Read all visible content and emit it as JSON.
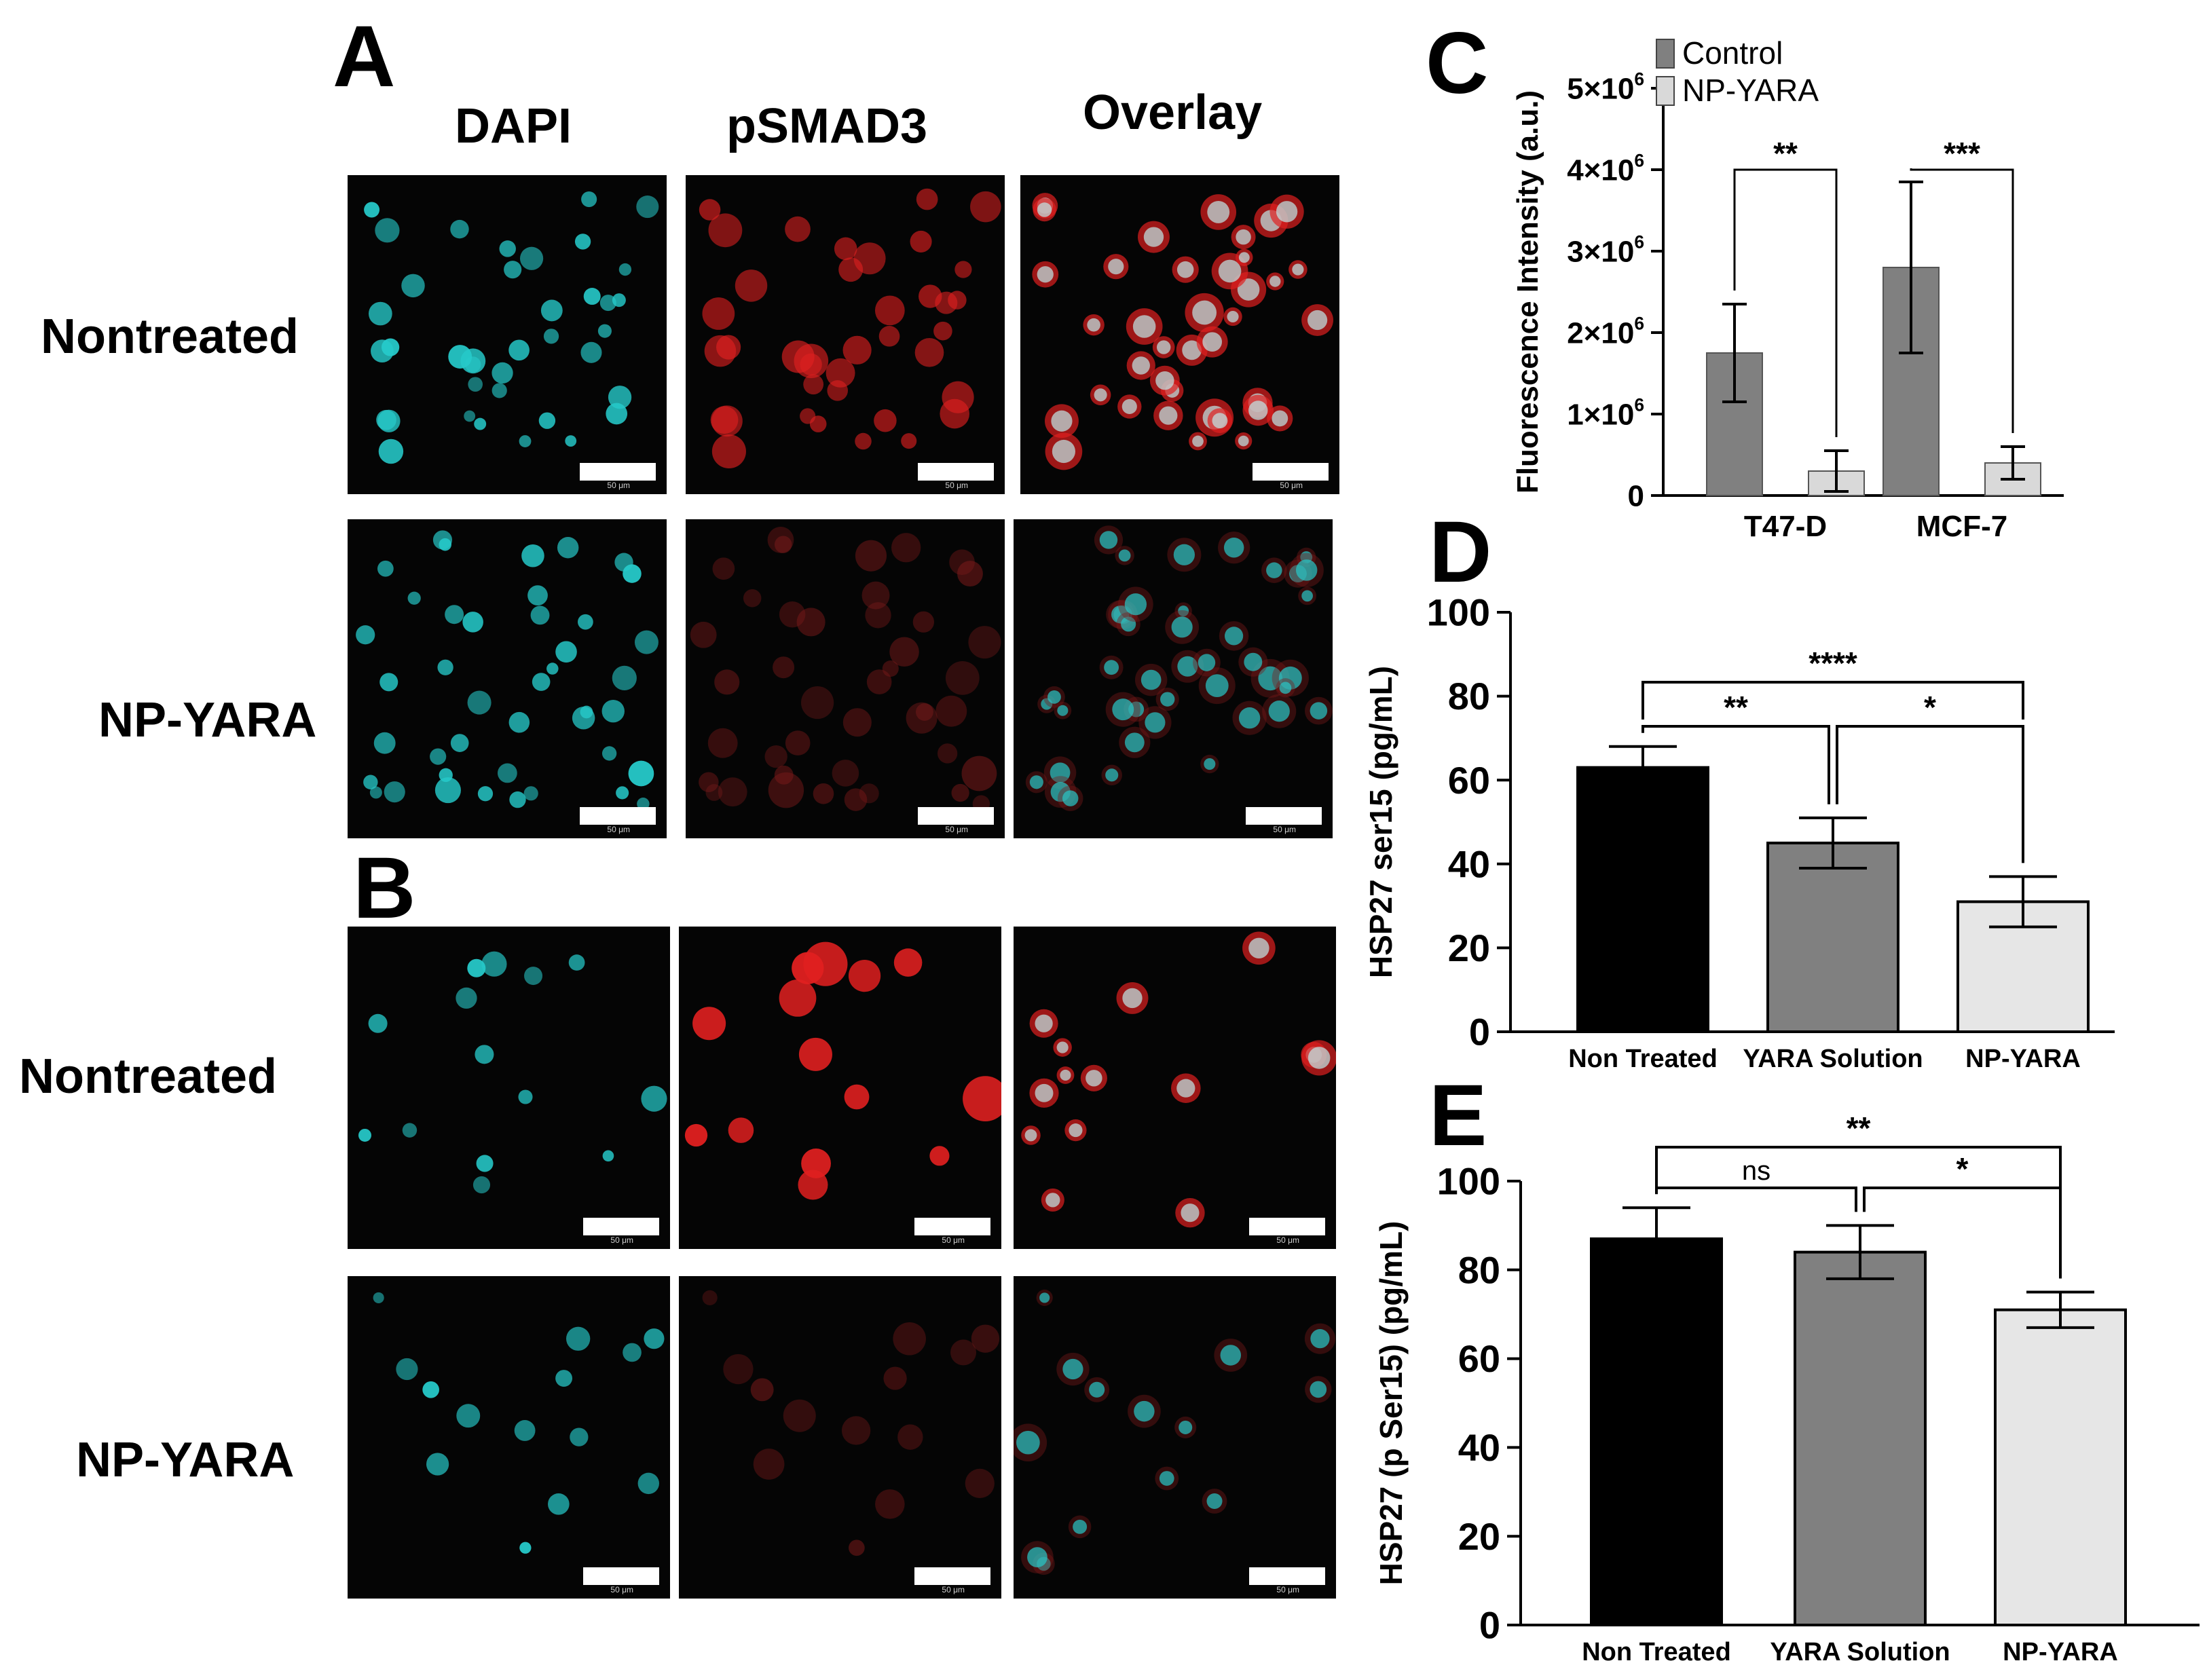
{
  "panels": {
    "A": "A",
    "B": "B",
    "C": "C",
    "D": "D",
    "E": "E"
  },
  "columns": [
    "DAPI",
    "pSMAD3",
    "Overlay"
  ],
  "row_labels": {
    "a_top": "Nontreated",
    "a_bottom": "NP-YARA",
    "b_top": "Nontreated",
    "b_bottom": "NP-YARA"
  },
  "scale_bar_label": "50 μm",
  "colors": {
    "dapi": "#26c9c9",
    "pSMAD3": "#e02020",
    "control_bar": "#808080",
    "npyara_bar": "#d9d9d9",
    "nontreated_bar": "#000000",
    "yara_solution_bar": "#808080",
    "np_yara_bar": "#e6e6e6"
  },
  "chart_data": [
    {
      "id": "C",
      "type": "bar",
      "categories": [
        "T47-D",
        "MCF-7"
      ],
      "series": [
        {
          "name": "Control",
          "values": [
            1750000,
            2800000
          ],
          "errors": [
            600000,
            1050000
          ]
        },
        {
          "name": "NP-YARA",
          "values": [
            300000,
            400000
          ],
          "errors": [
            250000,
            200000
          ]
        }
      ],
      "ylabel": "Fluorescence Intensity (a.u.)",
      "ylim": [
        0,
        5000000
      ],
      "yticks": [
        {
          "v": 0,
          "label": "0"
        },
        {
          "v": 1000000,
          "label": "1×10",
          "sup": "6"
        },
        {
          "v": 2000000,
          "label": "2×10",
          "sup": "6"
        },
        {
          "v": 3000000,
          "label": "3×10",
          "sup": "6"
        },
        {
          "v": 4000000,
          "label": "4×10",
          "sup": "6"
        },
        {
          "v": 5000000,
          "label": "5×10",
          "sup": "6"
        }
      ],
      "legend": "top-left",
      "significance": [
        {
          "category": "T47-D",
          "label": "**"
        },
        {
          "category": "MCF-7",
          "label": "***"
        }
      ]
    },
    {
      "id": "D",
      "type": "bar",
      "categories": [
        "Non Treated",
        "YARA Solution",
        "NP-YARA"
      ],
      "values": [
        63,
        45,
        31
      ],
      "errors": [
        5,
        6,
        6
      ],
      "ylabel": "HSP27 ser15 (pg/mL)",
      "ylim": [
        0,
        100
      ],
      "yticks": [
        0,
        20,
        40,
        60,
        80,
        100
      ],
      "significance": [
        {
          "from": 0,
          "to": 2,
          "label": "****"
        },
        {
          "from": 0,
          "to": 1,
          "label": "**"
        },
        {
          "from": 1,
          "to": 2,
          "label": "*"
        }
      ]
    },
    {
      "id": "E",
      "type": "bar",
      "categories": [
        "Non Treated",
        "YARA Solution",
        "NP-YARA"
      ],
      "values": [
        87,
        84,
        71
      ],
      "errors": [
        7,
        6,
        4
      ],
      "ylabel": "HSP27 (p Ser15) (pg/mL)",
      "ylim": [
        0,
        100
      ],
      "yticks": [
        0,
        20,
        40,
        60,
        80,
        100
      ],
      "significance": [
        {
          "from": 0,
          "to": 2,
          "label": "**"
        },
        {
          "from": 0,
          "to": 1,
          "label": "ns"
        },
        {
          "from": 1,
          "to": 2,
          "label": "*"
        }
      ]
    }
  ]
}
